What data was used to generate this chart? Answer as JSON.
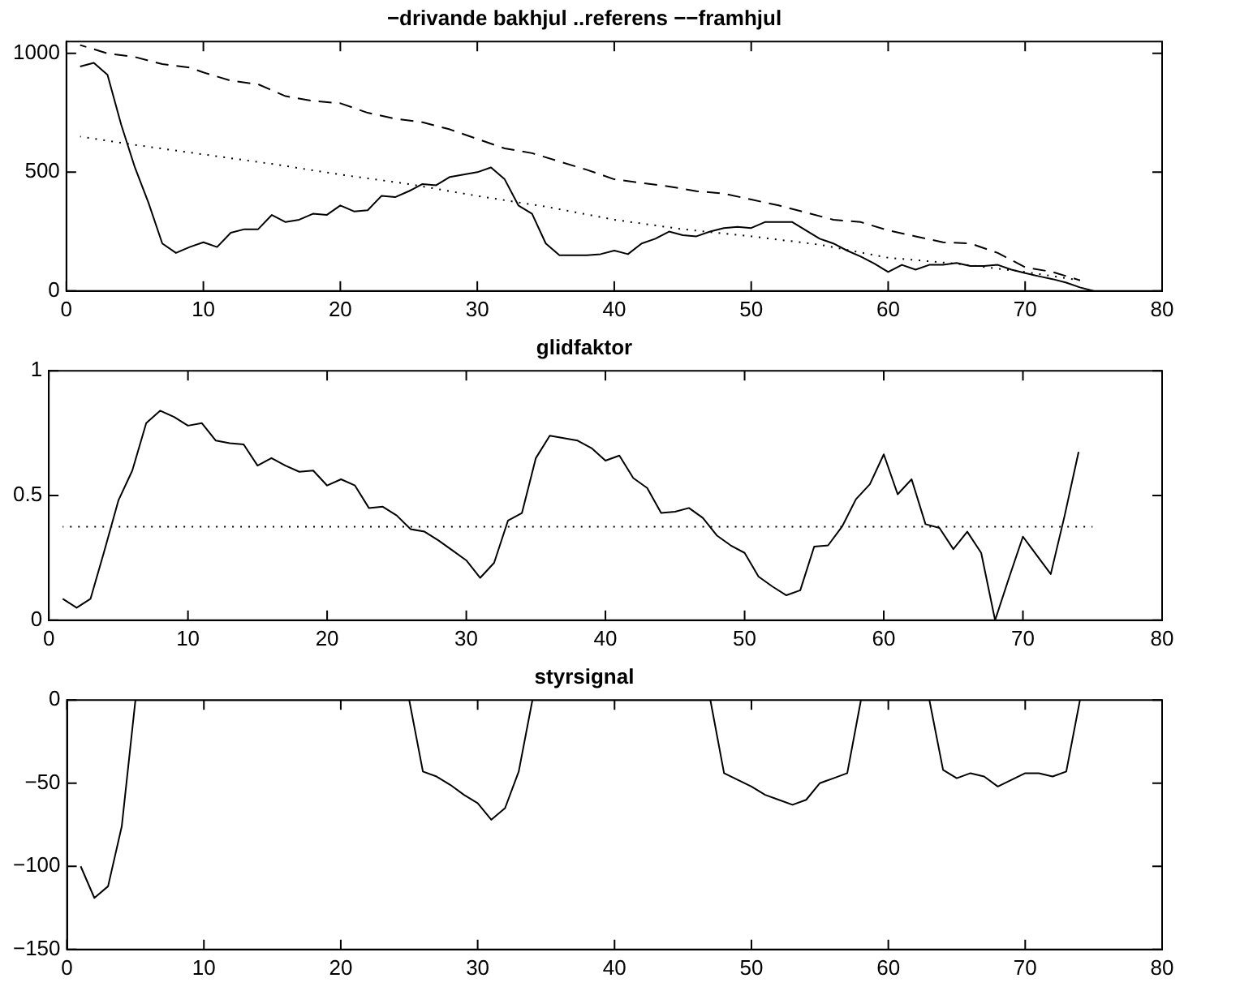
{
  "chart_data": [
    {
      "type": "line",
      "title": "−drivande bakhjul ..referens −−framhjul",
      "xlim": [
        0,
        80
      ],
      "xticks": [
        0,
        10,
        20,
        30,
        40,
        50,
        60,
        70,
        80
      ],
      "ylim": [
        0,
        1050
      ],
      "yticks": [
        0,
        500,
        1000
      ],
      "grid": false,
      "legend": false,
      "series": [
        {
          "color": "#000000",
          "line_style": "solid",
          "x": [
            1,
            2,
            3,
            4,
            5,
            6,
            7,
            8,
            9,
            10,
            11,
            12,
            13,
            14,
            15,
            16,
            17,
            18,
            19,
            20,
            21,
            22,
            23,
            24,
            25,
            26,
            27,
            28,
            29,
            30,
            31,
            32,
            33,
            34,
            35,
            36,
            37,
            38,
            39,
            40,
            41,
            42,
            43,
            44,
            45,
            46,
            47,
            48,
            49,
            50,
            51,
            52,
            53,
            54,
            55,
            56,
            57,
            58,
            59,
            60,
            61,
            62,
            63,
            64,
            65,
            66,
            67,
            68,
            69,
            70,
            71,
            72,
            73,
            74,
            75
          ],
          "values": [
            945,
            960,
            910,
            700,
            520,
            370,
            200,
            160,
            185,
            205,
            185,
            245,
            260,
            260,
            320,
            290,
            300,
            325,
            320,
            360,
            335,
            340,
            400,
            395,
            420,
            450,
            445,
            480,
            490,
            500,
            520,
            470,
            360,
            325,
            200,
            150,
            150,
            150,
            155,
            170,
            155,
            200,
            220,
            250,
            235,
            230,
            250,
            265,
            270,
            265,
            290,
            290,
            290,
            255,
            220,
            200,
            170,
            145,
            115,
            80,
            110,
            90,
            110,
            110,
            118,
            105,
            105,
            110,
            90,
            75,
            62,
            50,
            35,
            15,
            0
          ]
        },
        {
          "color": "#000000",
          "line_style": "dotted",
          "x": [
            1,
            5,
            10,
            15,
            20,
            25,
            30,
            35,
            40,
            45,
            50,
            55,
            60,
            65,
            70,
            74
          ],
          "values": [
            650,
            615,
            575,
            535,
            490,
            450,
            400,
            355,
            300,
            260,
            230,
            195,
            140,
            115,
            80,
            45
          ]
        },
        {
          "color": "#000000",
          "line_style": "dashed",
          "x": [
            1,
            3,
            5,
            7,
            9,
            10,
            12,
            14,
            16,
            18,
            20,
            22,
            24,
            26,
            28,
            30,
            32,
            34,
            36,
            38,
            40,
            42,
            44,
            46,
            48,
            50,
            52,
            54,
            56,
            58,
            60,
            62,
            64,
            66,
            68,
            70,
            72,
            74
          ],
          "values": [
            1035,
            1000,
            985,
            955,
            940,
            920,
            885,
            870,
            820,
            800,
            790,
            750,
            725,
            710,
            680,
            640,
            600,
            580,
            545,
            510,
            470,
            455,
            440,
            420,
            410,
            385,
            360,
            330,
            300,
            290,
            255,
            230,
            205,
            200,
            160,
            100,
            80,
            45
          ]
        }
      ]
    },
    {
      "type": "line",
      "title": "glidfaktor",
      "xlim": [
        0,
        80
      ],
      "xticks": [
        0,
        10,
        20,
        30,
        40,
        50,
        60,
        70,
        80
      ],
      "ylim": [
        0,
        1
      ],
      "yticks": [
        0,
        0.5,
        1
      ],
      "grid": false,
      "legend": false,
      "series": [
        {
          "color": "#000000",
          "line_style": "solid",
          "x": [
            1,
            2,
            3,
            4,
            5,
            6,
            7,
            8,
            9,
            10,
            11,
            12,
            13,
            14,
            15,
            16,
            17,
            18,
            19,
            20,
            21,
            22,
            23,
            24,
            25,
            26,
            27,
            28,
            29,
            30,
            31,
            32,
            33,
            34,
            35,
            36,
            37,
            38,
            39,
            40,
            41,
            42,
            43,
            44,
            45,
            46,
            47,
            48,
            49,
            50,
            51,
            52,
            53,
            54,
            55,
            56,
            57,
            58,
            59,
            60,
            61,
            62,
            63,
            64,
            65,
            66,
            67,
            68,
            69,
            70,
            71,
            72,
            73,
            74
          ],
          "values": [
            0.086,
            0.05,
            0.086,
            0.28,
            0.48,
            0.6,
            0.79,
            0.84,
            0.815,
            0.78,
            0.79,
            0.72,
            0.71,
            0.705,
            0.62,
            0.65,
            0.62,
            0.595,
            0.6,
            0.54,
            0.565,
            0.54,
            0.45,
            0.455,
            0.42,
            0.365,
            0.355,
            0.32,
            0.28,
            0.24,
            0.17,
            0.23,
            0.4,
            0.43,
            0.65,
            0.74,
            0.73,
            0.72,
            0.69,
            0.64,
            0.66,
            0.57,
            0.53,
            0.43,
            0.435,
            0.45,
            0.41,
            0.34,
            0.3,
            0.27,
            0.175,
            0.135,
            0.1,
            0.12,
            0.295,
            0.3,
            0.375,
            0.485,
            0.545,
            0.665,
            0.505,
            0.565,
            0.385,
            0.37,
            0.285,
            0.355,
            0.27,
            0,
            0.17,
            0.335,
            0.26,
            0.185,
            0.42,
            0.675
          ]
        },
        {
          "color": "#000000",
          "line_style": "dotted",
          "x": [
            1,
            75
          ],
          "values": [
            0.375,
            0.375
          ]
        }
      ]
    },
    {
      "type": "line",
      "title": "styrsignal",
      "xlim": [
        0,
        80
      ],
      "xticks": [
        0,
        10,
        20,
        30,
        40,
        50,
        60,
        70,
        80
      ],
      "ylim": [
        -150,
        0
      ],
      "yticks": [
        -150,
        -100,
        -50,
        0
      ],
      "grid": false,
      "legend": false,
      "series": [
        {
          "color": "#000000",
          "line_style": "solid",
          "x": [
            1,
            2,
            3,
            4,
            5,
            6,
            7,
            8,
            9,
            10,
            11,
            12,
            13,
            14,
            15,
            16,
            17,
            18,
            19,
            20,
            21,
            22,
            23,
            24,
            25,
            26,
            27,
            28,
            29,
            30,
            31,
            32,
            33,
            34,
            35,
            36,
            37,
            38,
            39,
            40,
            41,
            42,
            43,
            44,
            45,
            46,
            47,
            48,
            49,
            50,
            51,
            52,
            53,
            54,
            55,
            56,
            57,
            58,
            59,
            60,
            61,
            62,
            63,
            64,
            65,
            66,
            67,
            68,
            69,
            70,
            71,
            72,
            73,
            74
          ],
          "values": [
            -100,
            -119,
            -112,
            -76,
            0,
            0,
            0,
            0,
            0,
            0,
            0,
            0,
            0,
            0,
            0,
            0,
            0,
            0,
            0,
            0,
            0,
            0,
            0,
            0,
            0,
            -43,
            -46,
            -51,
            -57,
            -62,
            -72,
            -65,
            -43,
            0,
            0,
            0,
            0,
            0,
            0,
            0,
            0,
            0,
            0,
            0,
            0,
            0,
            0,
            -44,
            -48,
            -52,
            -57,
            -60,
            -63,
            -60,
            -50,
            -47,
            -44,
            0,
            0,
            0,
            0,
            0,
            0,
            -42,
            -47,
            -44,
            -46,
            -52,
            -48,
            -44,
            -44,
            -46,
            -43,
            0
          ]
        }
      ]
    }
  ]
}
